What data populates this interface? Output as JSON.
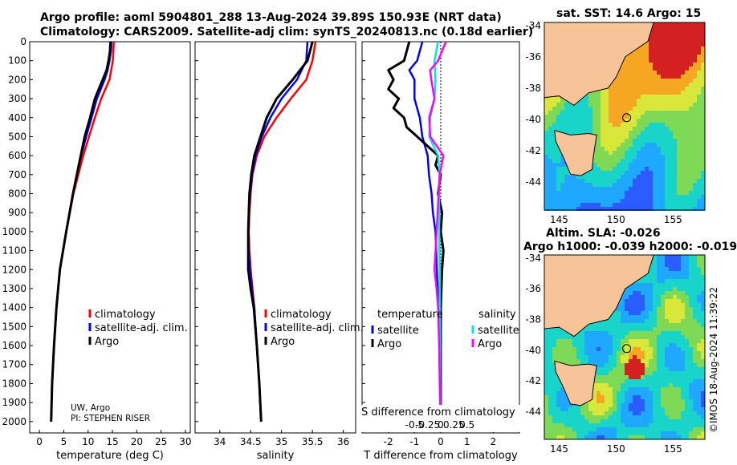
{
  "header": {
    "line1": "Argo profile: aoml 5904801_288 13-Aug-2024 39.89S 150.93E (NRT data)",
    "line2": "Climatology: CARS2009. Satellite-adj clim: synTS_20240813.nc (0.18d earlier)"
  },
  "colors": {
    "climatology": "#ff0000",
    "satellite": "#0000ff",
    "argo": "#000000",
    "sat_salinity": "#00e5e5",
    "argo_salinity": "#ff00ff"
  },
  "chart_data": [
    {
      "type": "line",
      "title": "",
      "xlabel": "temperature (deg C)",
      "ylabel": "",
      "xlim": [
        -2,
        31
      ],
      "ylim": [
        2060,
        0
      ],
      "xticks": [
        "0",
        "5",
        "10",
        "15",
        "20",
        "25",
        "30"
      ],
      "xtick_values": [
        0,
        5,
        10,
        15,
        20,
        25,
        30
      ],
      "yticks": [
        "0",
        "100",
        "200",
        "300",
        "400",
        "500",
        "600",
        "700",
        "800",
        "900",
        "1000",
        "1100",
        "1200",
        "1300",
        "1400",
        "1500",
        "1600",
        "1700",
        "1800",
        "1900",
        "2000"
      ],
      "legend": [
        "climatology",
        "satellite-adj. clim.",
        "Argo"
      ],
      "annotation": [
        "UW, Argo",
        "PI: STEPHEN RISER"
      ],
      "series": [
        {
          "name": "climatology",
          "color": "#ff0000",
          "pressure": [
            0,
            100,
            200,
            300,
            400,
            500,
            600,
            800,
            1000,
            1200,
            1400,
            1600,
            1800,
            2000
          ],
          "values": [
            15.3,
            15.1,
            14.4,
            12.7,
            11.4,
            10.2,
            9.0,
            7.0,
            5.5,
            4.2,
            3.5,
            3.0,
            2.6,
            2.4
          ]
        },
        {
          "name": "satellite-adj. clim.",
          "color": "#0000ff",
          "pressure": [
            0,
            50,
            100,
            150,
            200,
            300,
            400,
            500,
            600,
            800,
            1000,
            1200,
            1400,
            1600,
            1800,
            2000
          ],
          "values": [
            14.8,
            14.7,
            14.4,
            14.0,
            13.4,
            11.8,
            10.7,
            9.6,
            8.6,
            6.9,
            5.5,
            4.2,
            3.5,
            3.0,
            2.6,
            2.4
          ]
        },
        {
          "name": "Argo",
          "color": "#000000",
          "pressure": [
            0,
            50,
            100,
            150,
            200,
            300,
            400,
            500,
            600,
            800,
            1000,
            1200,
            1400,
            1600,
            1800,
            2000
          ],
          "values": [
            14.6,
            14.5,
            14.2,
            13.8,
            13.0,
            11.4,
            10.4,
            9.3,
            8.5,
            6.9,
            5.5,
            4.2,
            3.5,
            3.0,
            2.6,
            2.4
          ]
        }
      ]
    },
    {
      "type": "line",
      "title": "",
      "xlabel": "salinity",
      "ylabel": "",
      "xlim": [
        33.6,
        36.2
      ],
      "ylim": [
        2060,
        0
      ],
      "xticks": [
        "34",
        "34.5",
        "35",
        "35.5",
        "36"
      ],
      "xtick_values": [
        34,
        34.5,
        35,
        35.5,
        36
      ],
      "legend": [
        "climatology",
        "satellite-adj. clim.",
        "Argo"
      ],
      "series": [
        {
          "name": "climatology",
          "color": "#ff0000",
          "pressure": [
            0,
            100,
            200,
            300,
            400,
            500,
            600,
            700,
            800,
            900,
            1000,
            1100,
            1200,
            1300,
            1400,
            1600,
            1800,
            2000
          ],
          "values": [
            35.55,
            35.5,
            35.4,
            35.15,
            34.92,
            34.72,
            34.6,
            34.53,
            34.5,
            34.48,
            34.47,
            34.48,
            34.5,
            34.53,
            34.56,
            34.6,
            34.64,
            34.67
          ]
        },
        {
          "name": "satellite-adj. clim.",
          "color": "#0000ff",
          "pressure": [
            0,
            100,
            200,
            300,
            400,
            500,
            600,
            700,
            800,
            900,
            1000,
            1100,
            1200,
            1300,
            1400,
            1600,
            1800,
            2000
          ],
          "values": [
            35.42,
            35.4,
            35.25,
            35.0,
            34.82,
            34.68,
            34.58,
            34.52,
            34.49,
            34.47,
            34.46,
            34.47,
            34.49,
            34.52,
            34.56,
            34.6,
            34.64,
            34.67
          ]
        },
        {
          "name": "Argo",
          "color": "#000000",
          "pressure": [
            0,
            100,
            200,
            300,
            400,
            500,
            600,
            700,
            800,
            900,
            1000,
            1100,
            1200,
            1300,
            1400,
            1600,
            1800,
            2000
          ],
          "values": [
            35.5,
            35.42,
            35.18,
            34.92,
            34.76,
            34.66,
            34.56,
            34.51,
            34.48,
            34.47,
            34.46,
            34.46,
            34.46,
            34.5,
            34.55,
            34.6,
            34.64,
            34.67
          ]
        }
      ]
    },
    {
      "type": "line",
      "title": "",
      "xlabel": "T difference from climatology",
      "xlabel_top": "S difference from climatology",
      "xlim": [
        -3,
        3
      ],
      "ylim": [
        2060,
        0
      ],
      "xticks": [
        "-2",
        "-1",
        "0",
        "1",
        "2"
      ],
      "xtick_values": [
        -2,
        -1,
        0,
        1,
        2
      ],
      "sticks": [
        "-0.5",
        "-0.25",
        "0",
        "0.25",
        "0.5"
      ],
      "stick_values": [
        -0.5,
        -0.25,
        0,
        0.25,
        0.5
      ],
      "legend_temperature_title": "temperature",
      "legend_salinity_title": "salinity",
      "legend_temperature": [
        "satellite",
        "Argo"
      ],
      "legend_salinity": [
        "satellite",
        "Argo"
      ],
      "series": [
        {
          "name": "T satellite",
          "color": "#0000ff",
          "pressure": [
            0,
            100,
            150,
            200,
            300,
            400,
            500,
            600,
            700,
            800,
            900,
            1000,
            1200,
            1400,
            1600,
            1800,
            2000
          ],
          "values": [
            -0.7,
            -0.9,
            -1.2,
            -1.0,
            -1.0,
            -0.8,
            -0.7,
            -0.5,
            -0.45,
            -0.35,
            -0.3,
            -0.2,
            -0.15,
            -0.08,
            -0.05,
            -0.02,
            0
          ]
        },
        {
          "name": "T Argo",
          "color": "#000000",
          "pressure": [
            0,
            100,
            150,
            200,
            250,
            300,
            350,
            400,
            450,
            500,
            600,
            650,
            700,
            800,
            900,
            1000,
            1100,
            1200,
            1400,
            1600,
            1800,
            2000
          ],
          "values": [
            -1.2,
            -1.4,
            -2.0,
            -1.8,
            -2.0,
            -1.6,
            -1.8,
            -1.4,
            -1.3,
            -0.9,
            -0.1,
            -0.2,
            0,
            -0.1,
            0.05,
            0,
            0.1,
            0.05,
            0,
            0,
            0,
            0
          ]
        },
        {
          "name": "S satellite",
          "color": "#00e5e5",
          "pressure": [
            0,
            100,
            200,
            300,
            400,
            500,
            600,
            700,
            800,
            1000,
            1200,
            1400,
            1600,
            1800,
            2000
          ],
          "values": [
            -0.05,
            -0.12,
            -0.1,
            -0.12,
            -0.2,
            -0.22,
            -0.05,
            -0.02,
            -0.03,
            -0.03,
            -0.02,
            -0.02,
            -0.01,
            -0.01,
            0
          ]
        },
        {
          "name": "S Argo",
          "color": "#ff00ff",
          "pressure": [
            0,
            100,
            150,
            200,
            300,
            400,
            500,
            600,
            700,
            800,
            1000,
            1200,
            1300,
            1400,
            1600,
            1800,
            2000
          ],
          "values": [
            0.1,
            -0.05,
            -0.2,
            -0.18,
            -0.12,
            -0.22,
            -0.2,
            0.05,
            -0.02,
            -0.04,
            -0.08,
            -0.12,
            -0.08,
            -0.05,
            -0.03,
            -0.02,
            0
          ]
        }
      ]
    }
  ],
  "maps": {
    "sst": {
      "title": "sat. SST: 14.6 Argo: 15",
      "yticks": [
        "-34",
        "-36",
        "-38",
        "-40",
        "-42",
        "-44"
      ],
      "xticks": [
        "145",
        "150",
        "155"
      ]
    },
    "sla": {
      "title1": "Altim. SLA: -0.026",
      "title2": "Argo h1000: -0.039 h2000: -0.019",
      "yticks": [
        "-34",
        "-36",
        "-38",
        "-40",
        "-42",
        "-44"
      ],
      "xticks": [
        "145",
        "150",
        "155"
      ]
    }
  },
  "credit": "©IMOS 18-Aug-2024 11:39:22"
}
